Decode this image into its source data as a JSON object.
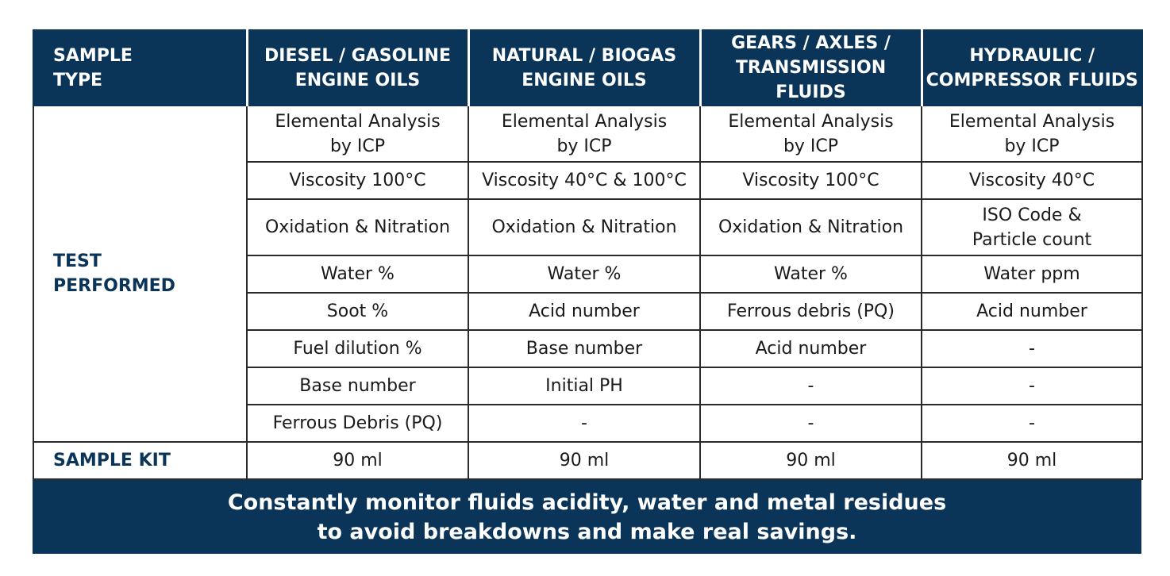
{
  "header": {
    "sample_type": "SAMPLE\nTYPE",
    "columns": [
      "DIESEL / GASOLINE\nENGINE OILS",
      "NATURAL / BIOGAS\nENGINE OILS",
      "GEARS / AXLES /\nTRANSMISSION FLUIDS",
      "HYDRAULIC /\nCOMPRESSOR FLUIDS"
    ]
  },
  "test_label": "TEST\nPERFORMED",
  "tests": [
    [
      "Elemental Analysis\nby ICP",
      "Elemental Analysis\nby ICP",
      "Elemental Analysis\nby ICP",
      "Elemental Analysis\nby ICP"
    ],
    [
      "Viscosity 100°C",
      "Viscosity 40°C & 100°C",
      "Viscosity 100°C",
      "Viscosity 40°C"
    ],
    [
      "Oxidation & Nitration",
      "Oxidation & Nitration",
      "Oxidation & Nitration",
      "ISO Code &\nParticle count"
    ],
    [
      "Water %",
      "Water %",
      "Water %",
      "Water ppm"
    ],
    [
      "Soot %",
      "Acid number",
      "Ferrous debris (PQ)",
      "Acid number"
    ],
    [
      "Fuel dilution %",
      "Base number",
      "Acid number",
      "-"
    ],
    [
      "Base number",
      "Initial PH",
      "-",
      "-"
    ],
    [
      "Ferrous Debris (PQ)",
      "-",
      "-",
      "-"
    ]
  ],
  "kit": {
    "label": "SAMPLE KIT",
    "values": [
      "90 ml",
      "90 ml",
      "90 ml",
      "90 ml"
    ]
  },
  "footer": {
    "line1": "Constantly monitor fluids acidity, water and metal residues",
    "line2": "to avoid breakdowns and make real savings."
  },
  "colors": {
    "navy": "#0b3558",
    "border": "#2a2a2a"
  }
}
